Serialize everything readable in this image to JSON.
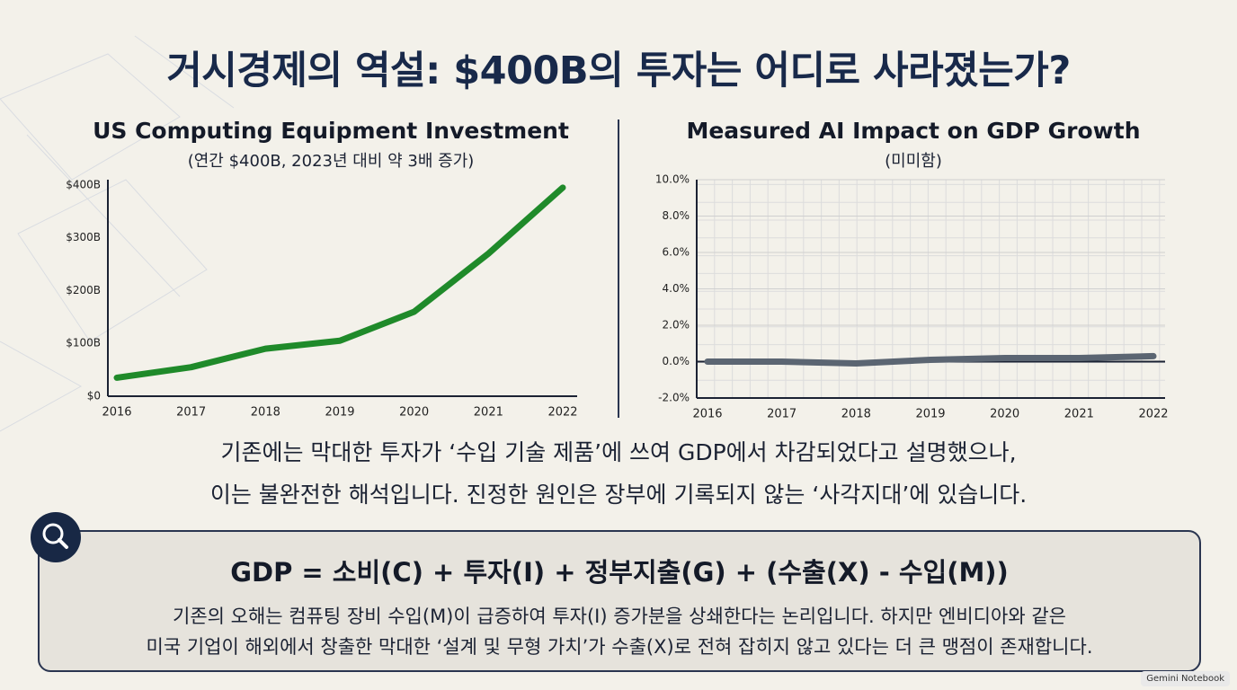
{
  "header": {
    "title": "거시경제의 역설: $400B의 투자는 어디로 사라졌는가?"
  },
  "chart_data": [
    {
      "type": "line",
      "title": "US Computing Equipment Investment",
      "subtitle": "(연간 $400B, 2023년 대비 약 3배 증가)",
      "categories": [
        "2016",
        "2017",
        "2018",
        "2019",
        "2020",
        "2021",
        "2022"
      ],
      "series": [
        {
          "color": "#1f8a2a",
          "values": [
            35,
            55,
            90,
            105,
            160,
            270,
            395
          ]
        }
      ],
      "ylim": [
        0,
        410
      ],
      "yticks": [
        {
          "value": 0,
          "label": "$0"
        },
        {
          "value": 100,
          "label": "$100B"
        },
        {
          "value": 200,
          "label": "$200B"
        },
        {
          "value": 300,
          "label": "$300B"
        },
        {
          "value": 400,
          "label": "$400B"
        }
      ],
      "grid": false
    },
    {
      "type": "line",
      "title": "Measured AI Impact on GDP Growth",
      "subtitle": "(미미함)",
      "categories": [
        "2016",
        "2017",
        "2018",
        "2019",
        "2020",
        "2021",
        "2022"
      ],
      "series": [
        {
          "color": "#5b6572",
          "values": [
            0.0,
            0.0,
            -0.1,
            0.1,
            0.2,
            0.2,
            0.3
          ]
        }
      ],
      "ylim": [
        -2,
        10
      ],
      "yticks": [
        {
          "value": -2,
          "label": "-2.0%"
        },
        {
          "value": 0,
          "label": "0.0%"
        },
        {
          "value": 2,
          "label": "2.0%"
        },
        {
          "value": 4,
          "label": "4.0%"
        },
        {
          "value": 6,
          "label": "6.0%"
        },
        {
          "value": 8,
          "label": "8.0%"
        },
        {
          "value": 10,
          "label": "10.0%"
        }
      ],
      "grid": true
    }
  ],
  "paragraph": [
    "기존에는 막대한 투자가 ‘수입 기술 제품’에 쓰여 GDP에서 차감되었다고 설명했으나,",
    "이는 불완전한 해석입니다. 진정한 원인은 장부에 기록되지 않는 ‘사각지대’에 있습니다."
  ],
  "box": {
    "formula": "GDP = 소비(C) + 투자(I) + 정부지출(G) + (수출(X) - 수입(M))",
    "text": [
      "기존의 오해는 컴퓨팅 장비 수입(M)이 급증하여 투자(I) 증가분을 상쇄한다는 논리입니다. 하지만 엔비디아와 같은",
      "미국 기업이 해외에서 창출한 막대한 ‘설계 및 무형 가치’가 수출(X)로 전혀 잡히지 않고 있다는 더 큰 맹점이 존재합니다."
    ]
  },
  "watermark": "Gemini Notebook"
}
